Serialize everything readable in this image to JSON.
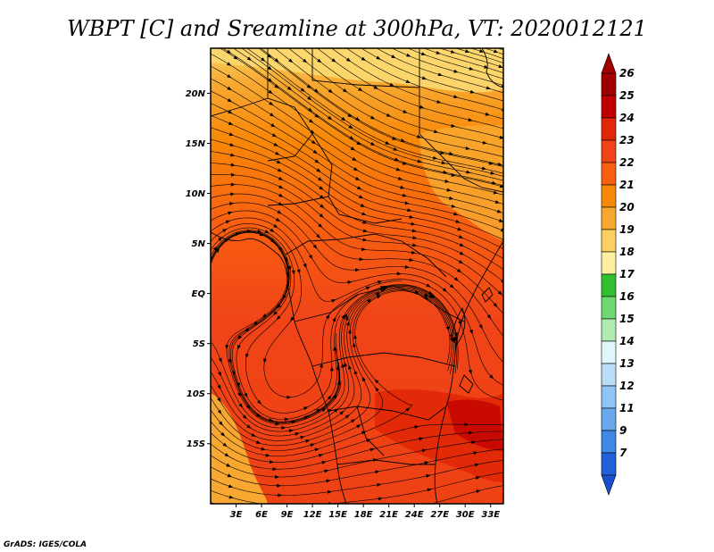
{
  "title": "WBPT [C] and Sreamline at 300hPa, VT: 2020012121",
  "credit": "GrADS: IGES/COLA",
  "map": {
    "lon_range": [
      0,
      34.5
    ],
    "lat_range": [
      -21,
      24.5
    ],
    "lat_ticks": [
      {
        "label": "20N",
        "value": 20
      },
      {
        "label": "15N",
        "value": 15
      },
      {
        "label": "10N",
        "value": 10
      },
      {
        "label": "5N",
        "value": 5
      },
      {
        "label": "EQ",
        "value": 0
      },
      {
        "label": "5S",
        "value": -5
      },
      {
        "label": "10S",
        "value": -10
      },
      {
        "label": "15S",
        "value": -15
      }
    ],
    "lon_ticks": [
      {
        "label": "3E",
        "value": 3
      },
      {
        "label": "6E",
        "value": 6
      },
      {
        "label": "9E",
        "value": 9
      },
      {
        "label": "12E",
        "value": 12
      },
      {
        "label": "15E",
        "value": 15
      },
      {
        "label": "18E",
        "value": 18
      },
      {
        "label": "21E",
        "value": 21
      },
      {
        "label": "24E",
        "value": 24
      },
      {
        "label": "27E",
        "value": 27
      },
      {
        "label": "30E",
        "value": 30
      },
      {
        "label": "33E",
        "value": 33
      }
    ]
  },
  "colorbar": {
    "levels": [
      {
        "label": "26",
        "color": "#a00000"
      },
      {
        "label": "25",
        "color": "#c00000"
      },
      {
        "label": "24",
        "color": "#e02808"
      },
      {
        "label": "23",
        "color": "#f04418"
      },
      {
        "label": "22",
        "color": "#f86010"
      },
      {
        "label": "21",
        "color": "#f88808"
      },
      {
        "label": "20",
        "color": "#f8a830"
      },
      {
        "label": "19",
        "color": "#fcd060"
      },
      {
        "label": "18",
        "color": "#fcf0a0"
      },
      {
        "label": "17",
        "color": "#30c030"
      },
      {
        "label": "16",
        "color": "#70d870"
      },
      {
        "label": "15",
        "color": "#b0ecb0"
      },
      {
        "label": "14",
        "color": "#e0f6fc"
      },
      {
        "label": "13",
        "color": "#b8def8"
      },
      {
        "label": "12",
        "color": "#90c4f4"
      },
      {
        "label": "11",
        "color": "#68a8ee"
      },
      {
        "label": "9",
        "color": "#4088e6"
      },
      {
        "label": "7",
        "color": "#2060d8"
      }
    ],
    "bottom_color": "#1a50d0"
  }
}
